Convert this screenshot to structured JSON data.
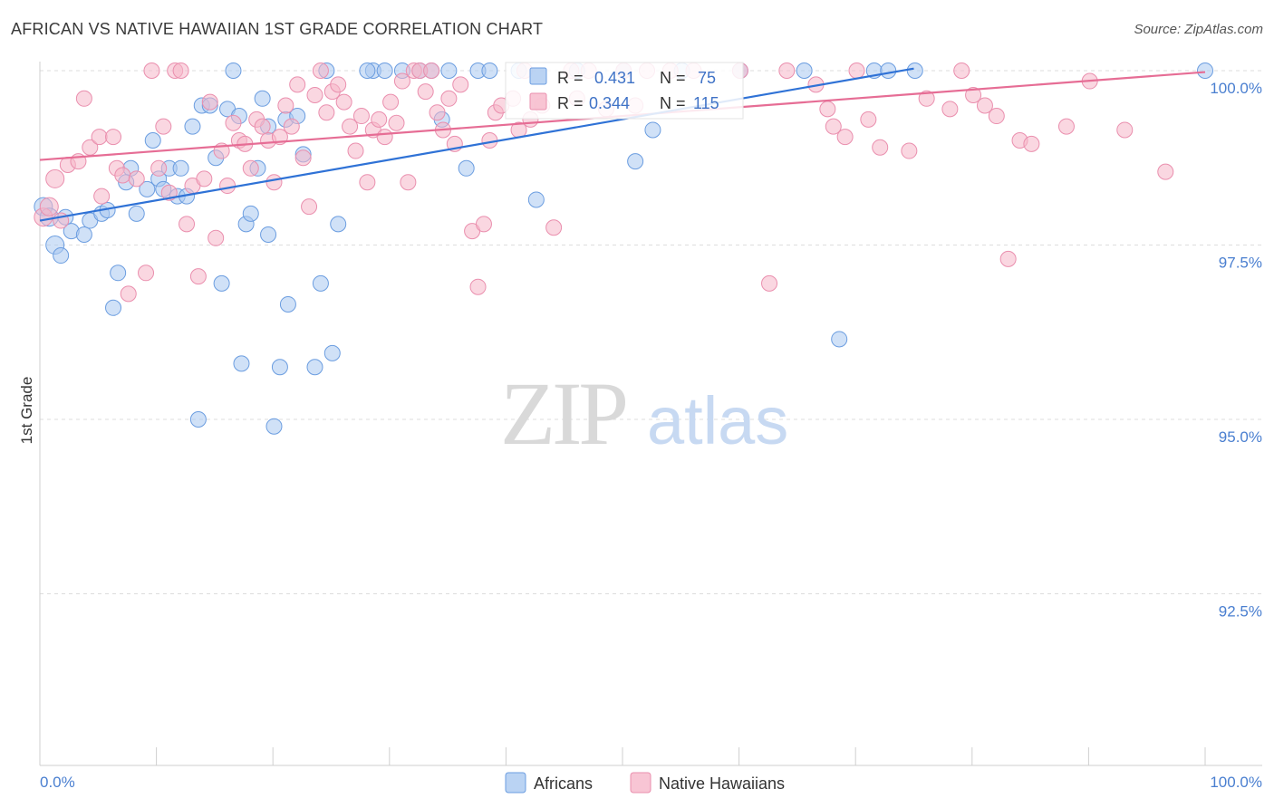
{
  "title": "AFRICAN VS NATIVE HAWAIIAN 1ST GRADE CORRELATION CHART",
  "source": "Source: ZipAtlas.com",
  "watermark": {
    "zip": "ZIP",
    "atlas": "atlas"
  },
  "colors": {
    "africans_fill": "#a9c8f0",
    "africans_stroke": "#6b9de0",
    "africans_line": "#2f72d6",
    "hawaiians_fill": "#f6b6c9",
    "hawaiians_stroke": "#ea8fae",
    "hawaiians_line": "#e66d95",
    "tick_label": "#4a7fd0",
    "grid": "#dddddd"
  },
  "chart_data": {
    "type": "scatter",
    "xlabel": "",
    "ylabel": "1st Grade",
    "xlim": [
      0,
      100
    ],
    "ylim": [
      90.8,
      100.4
    ],
    "x_tick_labels": {
      "left": "0.0%",
      "right": "100.0%"
    },
    "y_ticks": [
      {
        "value": 100.0,
        "label": "100.0%"
      },
      {
        "value": 97.5,
        "label": "97.5%"
      },
      {
        "value": 95.0,
        "label": "95.0%"
      },
      {
        "value": 92.5,
        "label": "92.5%"
      }
    ],
    "grid": true,
    "legend_position": "top-center",
    "stats": [
      {
        "r_label": "R =",
        "r_value": "0.431",
        "n_label": "N =",
        "n_value": "75"
      },
      {
        "r_label": "R =",
        "r_value": "0.344",
        "n_label": "N =",
        "n_value": "115"
      }
    ],
    "series": [
      {
        "name": "Africans",
        "trend": {
          "x": [
            0,
            75
          ],
          "y": [
            97.85,
            100.03
          ]
        },
        "points": [
          [
            0.3,
            98.05
          ],
          [
            0.8,
            97.9
          ],
          [
            1.3,
            97.5
          ],
          [
            1.8,
            97.35
          ],
          [
            2.2,
            97.9
          ],
          [
            2.7,
            97.7
          ],
          [
            3.8,
            97.65
          ],
          [
            4.3,
            97.85
          ],
          [
            5.3,
            97.95
          ],
          [
            5.8,
            98.0
          ],
          [
            6.7,
            97.1
          ],
          [
            6.3,
            96.6
          ],
          [
            7.8,
            98.6
          ],
          [
            7.4,
            98.4
          ],
          [
            8.3,
            97.95
          ],
          [
            9.2,
            98.3
          ],
          [
            9.7,
            99.0
          ],
          [
            10.2,
            98.45
          ],
          [
            10.6,
            98.3
          ],
          [
            11.1,
            98.6
          ],
          [
            11.8,
            98.2
          ],
          [
            12.1,
            98.6
          ],
          [
            12.6,
            98.2
          ],
          [
            13.1,
            99.2
          ],
          [
            13.6,
            95.0
          ],
          [
            13.9,
            99.5
          ],
          [
            14.6,
            99.5
          ],
          [
            15.1,
            98.75
          ],
          [
            15.6,
            96.95
          ],
          [
            16.1,
            99.45
          ],
          [
            17.1,
            99.35
          ],
          [
            17.3,
            95.8
          ],
          [
            17.7,
            97.8
          ],
          [
            18.1,
            97.95
          ],
          [
            18.7,
            98.6
          ],
          [
            19.1,
            99.6
          ],
          [
            19.6,
            99.2
          ],
          [
            20.1,
            94.9
          ],
          [
            20.6,
            95.75
          ],
          [
            21.1,
            99.3
          ],
          [
            21.3,
            96.65
          ],
          [
            22.1,
            99.35
          ],
          [
            22.6,
            98.8
          ],
          [
            23.6,
            95.75
          ],
          [
            24.1,
            96.95
          ],
          [
            25.1,
            95.95
          ],
          [
            25.6,
            97.8
          ],
          [
            16.6,
            100.0
          ],
          [
            28.6,
            100.0
          ],
          [
            31.1,
            100.0
          ],
          [
            33.6,
            100.0
          ],
          [
            34.5,
            99.3
          ],
          [
            35.1,
            100.0
          ],
          [
            36.6,
            98.6
          ],
          [
            37.6,
            100.0
          ],
          [
            38.6,
            100.0
          ],
          [
            41.1,
            100.0
          ],
          [
            42.6,
            98.15
          ],
          [
            46.1,
            100.0
          ],
          [
            50.1,
            100.0
          ],
          [
            51.1,
            98.7
          ],
          [
            52.6,
            99.15
          ],
          [
            55.1,
            100.0
          ],
          [
            60.1,
            100.0
          ],
          [
            65.6,
            100.0
          ],
          [
            68.6,
            96.15
          ],
          [
            71.6,
            100.0
          ],
          [
            72.8,
            100.0
          ],
          [
            75.1,
            100.0
          ],
          [
            100.0,
            100.0
          ],
          [
            24.6,
            100.0
          ],
          [
            29.6,
            100.0
          ],
          [
            28.1,
            100.0
          ],
          [
            32.6,
            100.0
          ],
          [
            19.6,
            97.65
          ]
        ]
      },
      {
        "name": "Native Hawaiians",
        "trend": {
          "x": [
            0,
            100
          ],
          "y": [
            98.72,
            99.98
          ]
        },
        "points": [
          [
            0.3,
            97.9
          ],
          [
            0.8,
            98.05
          ],
          [
            1.3,
            98.45
          ],
          [
            1.8,
            97.85
          ],
          [
            2.4,
            98.65
          ],
          [
            3.3,
            98.7
          ],
          [
            3.8,
            99.6
          ],
          [
            4.3,
            98.9
          ],
          [
            5.1,
            99.05
          ],
          [
            5.3,
            98.2
          ],
          [
            6.3,
            99.05
          ],
          [
            6.6,
            98.6
          ],
          [
            7.1,
            98.5
          ],
          [
            7.6,
            96.8
          ],
          [
            8.3,
            98.45
          ],
          [
            9.1,
            97.1
          ],
          [
            9.6,
            100.0
          ],
          [
            10.2,
            98.6
          ],
          [
            10.6,
            99.2
          ],
          [
            11.1,
            98.25
          ],
          [
            11.6,
            100.0
          ],
          [
            12.1,
            100.0
          ],
          [
            12.6,
            97.8
          ],
          [
            13.1,
            98.35
          ],
          [
            13.6,
            97.05
          ],
          [
            14.1,
            98.45
          ],
          [
            14.6,
            99.55
          ],
          [
            15.1,
            97.6
          ],
          [
            15.6,
            98.85
          ],
          [
            16.1,
            98.35
          ],
          [
            16.6,
            99.25
          ],
          [
            17.1,
            99.0
          ],
          [
            17.6,
            98.95
          ],
          [
            18.1,
            98.6
          ],
          [
            18.6,
            99.3
          ],
          [
            19.1,
            99.2
          ],
          [
            19.6,
            99.0
          ],
          [
            20.1,
            98.4
          ],
          [
            20.6,
            99.05
          ],
          [
            21.1,
            99.5
          ],
          [
            21.6,
            99.2
          ],
          [
            22.1,
            99.8
          ],
          [
            22.6,
            98.75
          ],
          [
            23.1,
            98.05
          ],
          [
            23.6,
            99.65
          ],
          [
            24.1,
            100.0
          ],
          [
            24.6,
            99.4
          ],
          [
            25.1,
            99.7
          ],
          [
            25.6,
            99.8
          ],
          [
            26.1,
            99.55
          ],
          [
            26.6,
            99.2
          ],
          [
            27.1,
            98.85
          ],
          [
            27.6,
            99.35
          ],
          [
            28.1,
            98.4
          ],
          [
            28.6,
            99.15
          ],
          [
            29.1,
            99.3
          ],
          [
            29.6,
            99.05
          ],
          [
            30.1,
            99.55
          ],
          [
            30.6,
            99.25
          ],
          [
            31.1,
            99.85
          ],
          [
            31.6,
            98.4
          ],
          [
            32.1,
            100.0
          ],
          [
            32.6,
            100.0
          ],
          [
            33.1,
            99.7
          ],
          [
            33.6,
            100.0
          ],
          [
            34.1,
            99.4
          ],
          [
            34.6,
            99.15
          ],
          [
            35.1,
            99.6
          ],
          [
            35.6,
            98.95
          ],
          [
            36.1,
            99.8
          ],
          [
            37.1,
            97.7
          ],
          [
            37.6,
            96.9
          ],
          [
            38.1,
            97.8
          ],
          [
            38.6,
            99.0
          ],
          [
            39.1,
            99.4
          ],
          [
            39.6,
            99.5
          ],
          [
            40.6,
            99.6
          ],
          [
            41.1,
            99.15
          ],
          [
            41.6,
            100.0
          ],
          [
            42.1,
            99.3
          ],
          [
            43.1,
            99.5
          ],
          [
            44.1,
            97.75
          ],
          [
            45.6,
            100.0
          ],
          [
            46.1,
            99.6
          ],
          [
            47.1,
            100.0
          ],
          [
            48.6,
            99.45
          ],
          [
            50.1,
            100.0
          ],
          [
            51.1,
            99.5
          ],
          [
            52.1,
            100.0
          ],
          [
            54.1,
            100.0
          ],
          [
            56.1,
            100.0
          ],
          [
            60.1,
            100.0
          ],
          [
            62.6,
            96.95
          ],
          [
            64.1,
            100.0
          ],
          [
            66.6,
            99.8
          ],
          [
            67.6,
            99.45
          ],
          [
            68.1,
            99.2
          ],
          [
            69.1,
            99.05
          ],
          [
            70.1,
            100.0
          ],
          [
            71.1,
            99.3
          ],
          [
            72.1,
            98.9
          ],
          [
            74.6,
            98.85
          ],
          [
            76.1,
            99.6
          ],
          [
            78.1,
            99.45
          ],
          [
            79.1,
            100.0
          ],
          [
            80.1,
            99.65
          ],
          [
            81.1,
            99.5
          ],
          [
            82.1,
            99.35
          ],
          [
            83.1,
            97.3
          ],
          [
            84.1,
            99.0
          ],
          [
            85.1,
            98.95
          ],
          [
            88.1,
            99.2
          ],
          [
            90.1,
            99.85
          ],
          [
            93.1,
            99.15
          ],
          [
            96.6,
            98.55
          ]
        ]
      }
    ]
  },
  "bottom_legend": [
    "Africans",
    "Native Hawaiians"
  ]
}
